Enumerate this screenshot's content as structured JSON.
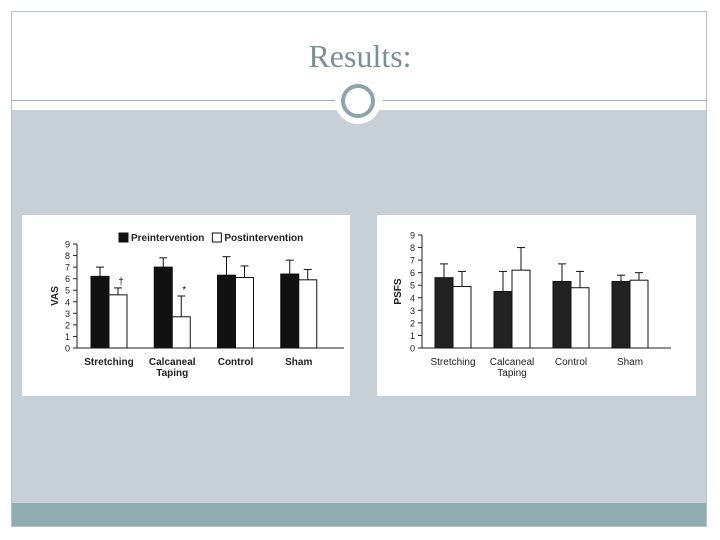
{
  "slide": {
    "title": "Results:"
  },
  "chart_data": [
    {
      "type": "bar",
      "categories": [
        "Stretching",
        "Calcaneal\nTaping",
        "Control",
        "Sham"
      ],
      "series": [
        {
          "name": "Preintervention",
          "values": [
            6.2,
            7.0,
            6.3,
            6.4
          ],
          "errors": [
            0.8,
            0.8,
            1.6,
            1.2
          ]
        },
        {
          "name": "Postintervention",
          "values": [
            4.6,
            2.7,
            6.1,
            5.9
          ],
          "errors": [
            0.6,
            1.8,
            1.0,
            0.9
          ]
        }
      ],
      "annotations": [
        {
          "category": 0,
          "series": 1,
          "text": "†"
        },
        {
          "category": 1,
          "series": 1,
          "text": "*"
        }
      ],
      "ylabel": "VAS",
      "ylim": [
        0,
        9
      ],
      "yticks": [
        0,
        1,
        2,
        3,
        4,
        5,
        6,
        7,
        8,
        9
      ],
      "legend": "top",
      "colors": [
        "#111111",
        "#ffffff"
      ]
    },
    {
      "type": "bar",
      "categories": [
        "Stretching",
        "Calcaneal\nTaping",
        "Control",
        "Sham"
      ],
      "series": [
        {
          "values": [
            5.6,
            4.5,
            5.3,
            5.3
          ],
          "errors": [
            1.1,
            1.6,
            1.4,
            0.5
          ]
        },
        {
          "values": [
            4.9,
            6.2,
            4.8,
            5.4
          ],
          "errors": [
            1.2,
            1.8,
            1.3,
            0.6
          ]
        }
      ],
      "ylabel": "PSFS",
      "ylim": [
        0,
        9
      ],
      "yticks": [
        0,
        1,
        2,
        3,
        4,
        5,
        6,
        7,
        8,
        9
      ],
      "colors": [
        "#222222",
        "#ffffff"
      ]
    }
  ]
}
